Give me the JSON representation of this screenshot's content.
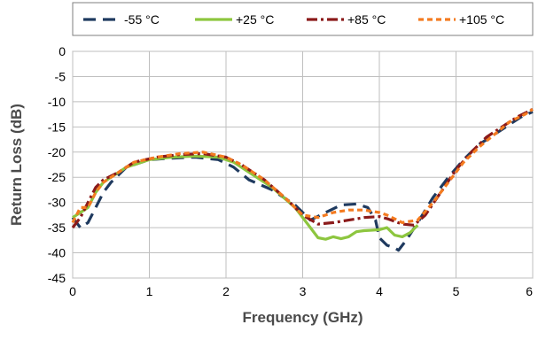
{
  "chart_data": {
    "type": "line",
    "title": "",
    "xlabel": "Frequency (GHz)",
    "ylabel": "Return Loss (dB)",
    "xlim": [
      0,
      6
    ],
    "ylim": [
      -45,
      0
    ],
    "x_ticks": [
      "0",
      "1",
      "2",
      "3",
      "4",
      "5",
      "6"
    ],
    "y_ticks": [
      "0",
      "-5",
      "-10",
      "-15",
      "-20",
      "-25",
      "-30",
      "-35",
      "-40",
      "-45"
    ],
    "grid": true,
    "legend_position": "top",
    "series": [
      {
        "name": "-55 °C",
        "color": "#1f3a5f",
        "dash": "long-dash",
        "points": [
          [
            0,
            -33
          ],
          [
            0.1,
            -35
          ],
          [
            0.2,
            -34
          ],
          [
            0.3,
            -31
          ],
          [
            0.4,
            -28
          ],
          [
            0.5,
            -26
          ],
          [
            0.7,
            -23
          ],
          [
            1.0,
            -21.5
          ],
          [
            1.3,
            -21.2
          ],
          [
            1.6,
            -21
          ],
          [
            1.9,
            -21.5
          ],
          [
            2.1,
            -23
          ],
          [
            2.3,
            -25.5
          ],
          [
            2.6,
            -27.5
          ],
          [
            2.9,
            -30.5
          ],
          [
            3.1,
            -33.5
          ],
          [
            3.3,
            -32
          ],
          [
            3.5,
            -30.5
          ],
          [
            3.7,
            -30.3
          ],
          [
            3.85,
            -31
          ],
          [
            3.95,
            -33.5
          ],
          [
            4.0,
            -37
          ],
          [
            4.1,
            -38.5
          ],
          [
            4.2,
            -39
          ],
          [
            4.25,
            -39.5
          ],
          [
            4.35,
            -37.5
          ],
          [
            4.5,
            -34
          ],
          [
            4.7,
            -29
          ],
          [
            4.9,
            -25
          ],
          [
            5.1,
            -21.5
          ],
          [
            5.3,
            -18.5
          ],
          [
            5.5,
            -16.5
          ],
          [
            5.7,
            -14.5
          ],
          [
            5.85,
            -13
          ],
          [
            6.0,
            -12
          ]
        ]
      },
      {
        "name": "+25 °C",
        "color": "#8dc63f",
        "dash": "solid",
        "points": [
          [
            0,
            -33
          ],
          [
            0.1,
            -32
          ],
          [
            0.2,
            -31
          ],
          [
            0.3,
            -28
          ],
          [
            0.4,
            -26
          ],
          [
            0.5,
            -25
          ],
          [
            0.7,
            -23
          ],
          [
            1.0,
            -21.5
          ],
          [
            1.3,
            -21
          ],
          [
            1.6,
            -20.8
          ],
          [
            1.9,
            -21
          ],
          [
            2.1,
            -22
          ],
          [
            2.3,
            -24
          ],
          [
            2.6,
            -27
          ],
          [
            2.9,
            -31
          ],
          [
            3.1,
            -35
          ],
          [
            3.2,
            -37
          ],
          [
            3.3,
            -37.3
          ],
          [
            3.4,
            -36.8
          ],
          [
            3.5,
            -37.2
          ],
          [
            3.6,
            -36.8
          ],
          [
            3.7,
            -35.8
          ],
          [
            3.8,
            -35.6
          ],
          [
            3.9,
            -35.5
          ],
          [
            4.0,
            -35.4
          ],
          [
            4.1,
            -35
          ],
          [
            4.2,
            -36.5
          ],
          [
            4.3,
            -36.8
          ],
          [
            4.4,
            -36
          ],
          [
            4.5,
            -34.5
          ]
        ]
      },
      {
        "name": "+85 °C",
        "color": "#8b1a1a",
        "dash": "dash-dot",
        "points": [
          [
            0,
            -35
          ],
          [
            0.1,
            -33
          ],
          [
            0.2,
            -30
          ],
          [
            0.3,
            -27
          ],
          [
            0.4,
            -25.5
          ],
          [
            0.6,
            -24
          ],
          [
            0.8,
            -22
          ],
          [
            1.1,
            -21
          ],
          [
            1.4,
            -20.5
          ],
          [
            1.7,
            -20.3
          ],
          [
            2.0,
            -21
          ],
          [
            2.2,
            -22.5
          ],
          [
            2.5,
            -25.5
          ],
          [
            2.8,
            -29.5
          ],
          [
            3.0,
            -32.5
          ],
          [
            3.2,
            -34.3
          ],
          [
            3.4,
            -34
          ],
          [
            3.6,
            -33.5
          ],
          [
            3.8,
            -33
          ],
          [
            4.0,
            -32.8
          ],
          [
            4.1,
            -33.2
          ],
          [
            4.3,
            -34.3
          ],
          [
            4.45,
            -34.5
          ],
          [
            4.6,
            -32.5
          ],
          [
            4.8,
            -28
          ],
          [
            5.0,
            -23.5
          ],
          [
            5.2,
            -20
          ],
          [
            5.4,
            -17
          ],
          [
            5.6,
            -15
          ],
          [
            5.8,
            -13
          ],
          [
            6.0,
            -11.5
          ]
        ]
      },
      {
        "name": "+105 °C",
        "color": "#f47b20",
        "dash": "short-dash",
        "points": [
          [
            0,
            -34
          ],
          [
            0.1,
            -31
          ],
          [
            0.2,
            -31
          ],
          [
            0.3,
            -28
          ],
          [
            0.4,
            -26
          ],
          [
            0.6,
            -24
          ],
          [
            0.8,
            -22
          ],
          [
            1.1,
            -21
          ],
          [
            1.4,
            -20.3
          ],
          [
            1.7,
            -20
          ],
          [
            2.0,
            -21
          ],
          [
            2.2,
            -22.5
          ],
          [
            2.5,
            -25.5
          ],
          [
            2.8,
            -29.5
          ],
          [
            3.0,
            -32.5
          ],
          [
            3.2,
            -33
          ],
          [
            3.4,
            -32
          ],
          [
            3.6,
            -31.5
          ],
          [
            3.8,
            -31.5
          ],
          [
            4.0,
            -32
          ],
          [
            4.1,
            -32.5
          ],
          [
            4.3,
            -34
          ],
          [
            4.5,
            -33.5
          ],
          [
            4.7,
            -30
          ],
          [
            4.9,
            -26
          ],
          [
            5.1,
            -22
          ],
          [
            5.3,
            -19
          ],
          [
            5.5,
            -16.5
          ],
          [
            5.7,
            -14
          ],
          [
            5.9,
            -12.5
          ],
          [
            6.0,
            -11.5
          ]
        ]
      }
    ]
  }
}
